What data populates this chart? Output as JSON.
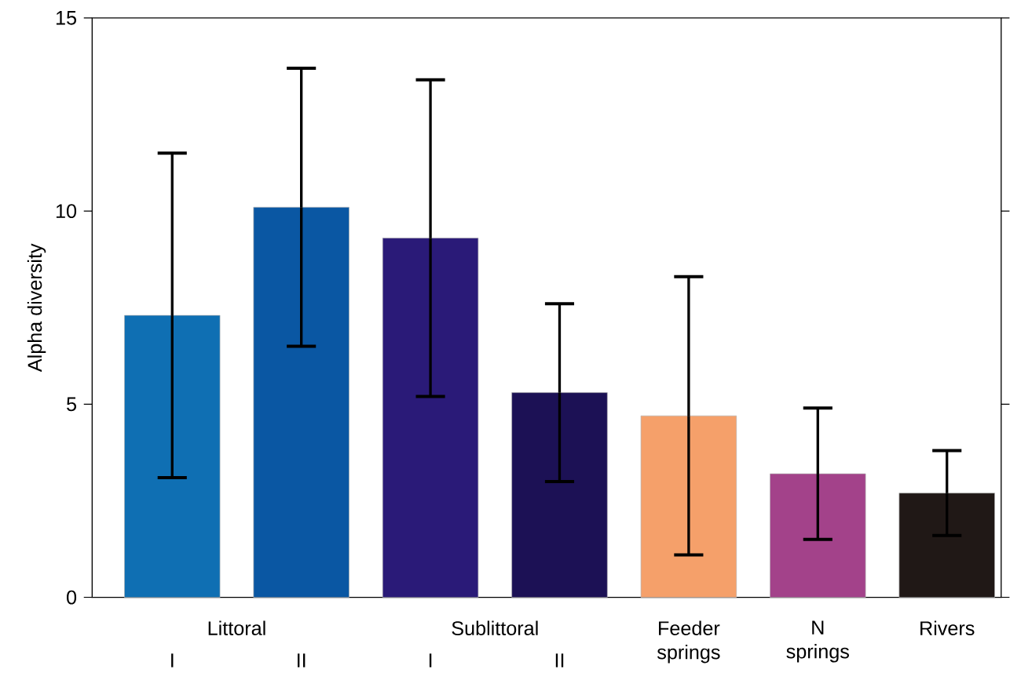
{
  "chart_data": {
    "type": "bar",
    "ylabel": "Alpha diversity",
    "categories": [
      "I",
      "II",
      "I",
      "II",
      "Feeder springs",
      "N springs",
      "Rivers"
    ],
    "values": [
      7.3,
      10.1,
      9.3,
      5.3,
      4.7,
      3.2,
      2.7
    ],
    "errors": [
      4.2,
      3.6,
      4.1,
      2.3,
      3.6,
      1.7,
      1.1
    ],
    "colors": [
      "#0f6fb3",
      "#0a57a3",
      "#2a1a78",
      "#1c1155",
      "#f5a06a",
      "#a3428a",
      "#201816"
    ],
    "annotations": [
      "Littoral",
      "Sublittoral"
    ],
    "ylim": [
      0,
      15
    ],
    "yticks": [
      0,
      5,
      10,
      15
    ]
  }
}
